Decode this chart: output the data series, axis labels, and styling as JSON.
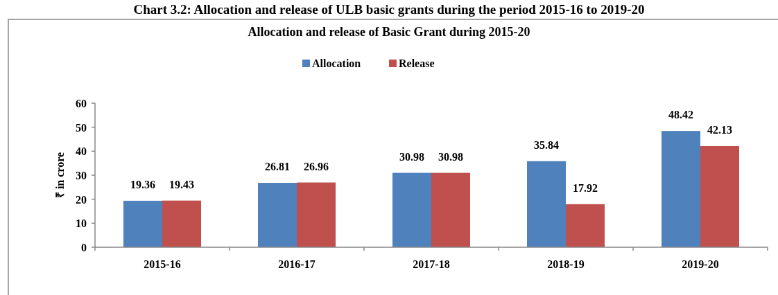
{
  "chart_data": {
    "type": "bar",
    "title": "Allocation and release of Basic Grant during 2015-20",
    "ylabel": "₹ in crore",
    "annotations": [
      "Chart 3.2: Allocation and release of ULB basic grants during the period 2015-16 to 2019-20"
    ],
    "categories": [
      "2015-16",
      "2016-17",
      "2017-18",
      "2018-19",
      "2019-20"
    ],
    "series": [
      {
        "name": "Allocation",
        "color": "#4f81bd",
        "values": [
          19.36,
          26.81,
          30.98,
          35.84,
          48.42
        ]
      },
      {
        "name": "Release",
        "color": "#c0504d",
        "values": [
          19.43,
          26.96,
          30.98,
          17.92,
          42.13
        ]
      }
    ],
    "ylim": [
      0,
      60
    ],
    "yticks": [
      0,
      10,
      20,
      30,
      40,
      50,
      60
    ],
    "data_labels": true,
    "legend": "top",
    "grid": false
  }
}
